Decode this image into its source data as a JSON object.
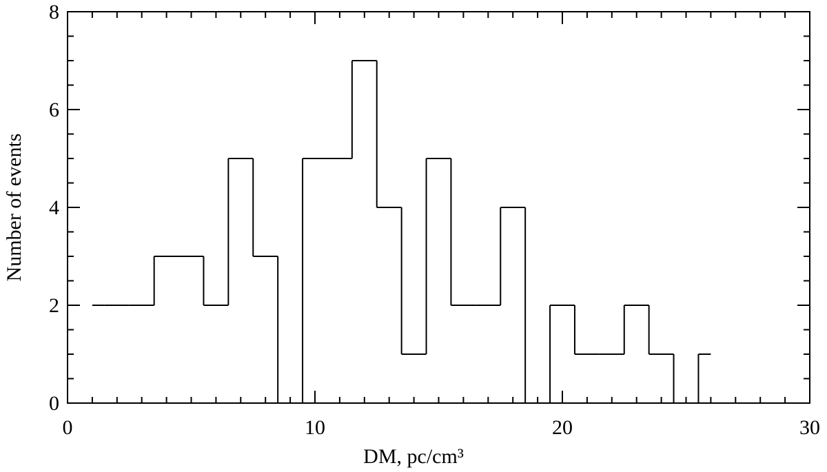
{
  "chart_data": {
    "type": "histogram",
    "xlabel": "DM, pc/cm³",
    "ylabel": "Number of events",
    "bins": [
      1,
      1.5,
      2.5,
      3.5,
      4.5,
      5.5,
      6.5,
      7.5,
      8.5,
      9.5,
      10.5,
      11.5,
      12.5,
      13.5,
      14.5,
      15.5,
      16.5,
      17.5,
      18.5,
      19.5,
      20.5,
      21.5,
      22.5,
      23.5,
      24.5,
      25.5,
      26
    ],
    "counts": [
      2,
      2,
      2,
      3,
      3,
      2,
      5,
      3,
      0,
      5,
      5,
      7,
      4,
      1,
      5,
      2,
      2,
      4,
      0,
      2,
      1,
      1,
      2,
      1,
      0,
      1
    ],
    "color": "#000000",
    "xlim": [
      0,
      30
    ],
    "xticks": [
      0,
      10,
      20,
      30
    ],
    "ylim": [
      0,
      8
    ],
    "yticks": [
      0,
      2,
      4,
      6,
      8
    ]
  }
}
